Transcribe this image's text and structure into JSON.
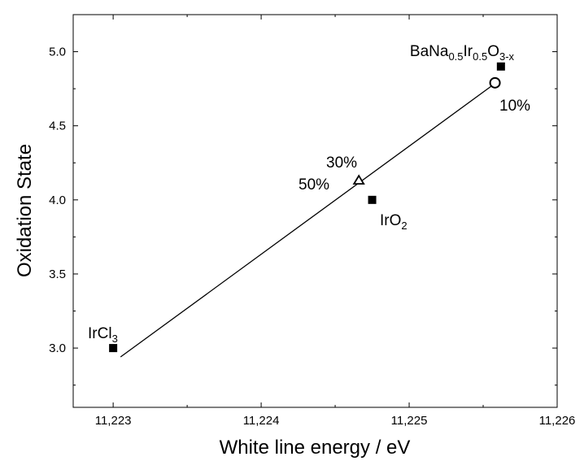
{
  "chart_data": {
    "type": "scatter",
    "title": "",
    "xlabel": "White line energy / eV",
    "ylabel": "Oxidation State",
    "xlim": [
      11222.73,
      11226
    ],
    "ylim": [
      2.6,
      5.25
    ],
    "xticks": [
      11223,
      11224,
      11225,
      11226
    ],
    "xtick_labels": [
      "11,223",
      "11,224",
      "11,225",
      "11,226"
    ],
    "yticks": [
      3.0,
      3.5,
      4.0,
      4.5,
      5.0
    ],
    "ytick_labels": [
      "3.0",
      "3.5",
      "4.0",
      "4.5",
      "5.0"
    ],
    "grid": false,
    "reference_points": [
      {
        "x": 11223.0,
        "y": 3.0,
        "marker": "filled-square"
      },
      {
        "x": 11224.75,
        "y": 4.0,
        "marker": "filled-square"
      },
      {
        "x": 11225.62,
        "y": 4.9,
        "marker": "filled-square"
      }
    ],
    "sample_points": [
      {
        "x": 11225.58,
        "y": 4.79,
        "marker": "open-circle"
      },
      {
        "x": 11224.66,
        "y": 4.13,
        "marker": "open-triangle"
      }
    ],
    "fit_line": {
      "x": [
        11223.05,
        11225.6
      ],
      "y": [
        2.94,
        4.8
      ]
    },
    "annotations": [
      {
        "id": "ircl3",
        "base": "IrCl",
        "sub": "3"
      },
      {
        "id": "iro2",
        "base": "IrO",
        "sub": "2"
      },
      {
        "id": "bana",
        "parts": [
          {
            "t": "BaNa",
            "sub": false
          },
          {
            "t": "0.5",
            "sub": true
          },
          {
            "t": "Ir",
            "sub": false
          },
          {
            "t": "0.5",
            "sub": true
          },
          {
            "t": "O",
            "sub": false
          },
          {
            "t": "3-x",
            "sub": true
          }
        ]
      },
      {
        "id": "p10",
        "text": "10%"
      },
      {
        "id": "p30",
        "text": "30%"
      },
      {
        "id": "p50",
        "text": "50%"
      }
    ]
  }
}
